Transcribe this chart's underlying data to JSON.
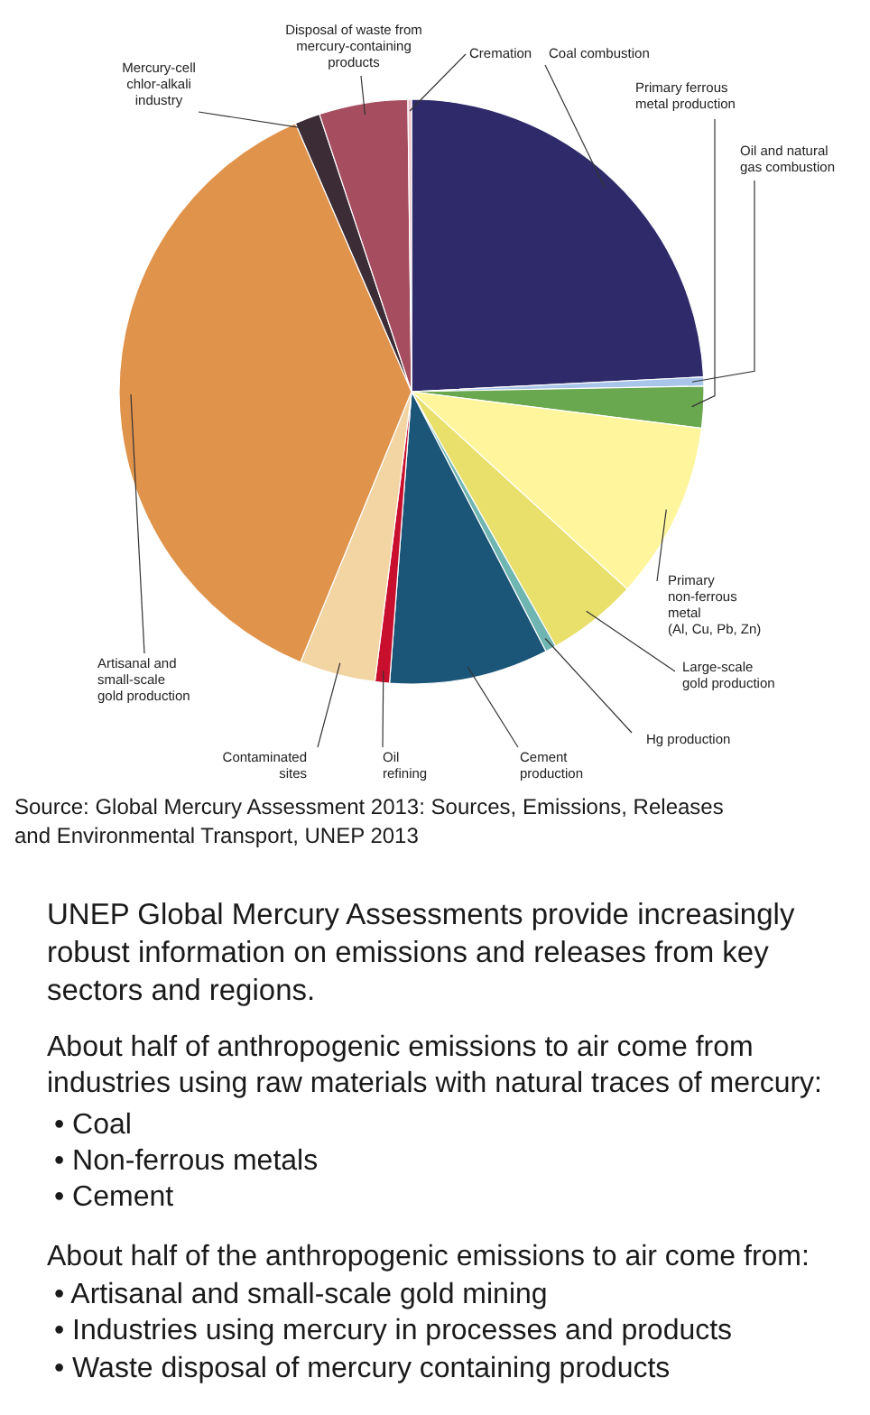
{
  "chart_data": {
    "type": "pie",
    "categories": [
      "Coal combustion",
      "Oil and natural\ngas combustion",
      "Primary ferrous\nmetal production",
      "Primary\nnon-ferrous\nmetal\n(Al, Cu, Pb, Zn)",
      "Large-scale\ngold production",
      "Hg production",
      "Cement\nproduction",
      "Oil\nrefining",
      "Contaminated\nsites",
      "Artisanal and\nsmall-scale\ngold production",
      "Mercury-cell\nchlor-alkali\nindustry",
      "Disposal of waste from\nmercury-containing\nproducts",
      "Cremation"
    ],
    "values": [
      24.2,
      0.5,
      2.3,
      9.8,
      5.0,
      0.6,
      8.8,
      0.8,
      4.2,
      37.3,
      1.4,
      4.9,
      0.2
    ],
    "colors": [
      "#2f2b6b",
      "#a9c6ea",
      "#6aa84f",
      "#fff59d",
      "#e9df6b",
      "#6fb5b1",
      "#1b5577",
      "#c8102e",
      "#f3d4a3",
      "#e0934b",
      "#3b2c36",
      "#a64e60",
      "#eec4cc"
    ],
    "annotations": [
      "Source: Global Mercury Assessment 2013: Sources, Emissions, Releases\nand Environmental Transport, UNEP 2013",
      "UNEP Global Mercury Assessments provide increasingly\nrobust information on emissions and releases from key\nsectors and regions.",
      "About half of anthropogenic emissions to air come from\nindustries using raw materials with natural traces of mercury:",
      "• Coal",
      "• Non-ferrous metals",
      "• Cement",
      "About half of the anthropogenic emissions to air come from:",
      "• Artisanal and small-scale gold mining",
      "• Industries using mercury in processes and products",
      "• Waste disposal of mercury containing products"
    ]
  }
}
